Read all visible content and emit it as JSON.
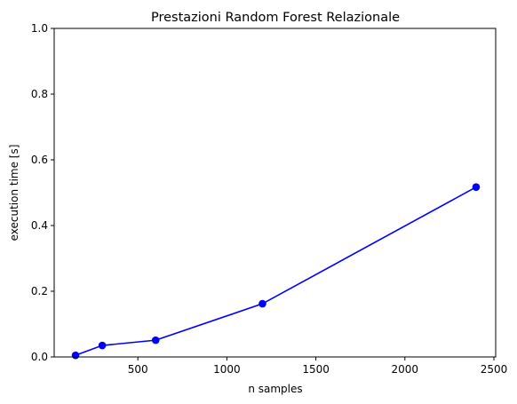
{
  "chart_data": {
    "type": "line",
    "title": "Prestazioni Random Forest Relazionale",
    "xlabel": "n samples",
    "ylabel": "execution time [s]",
    "xlim": [
      30,
      2510
    ],
    "ylim": [
      0,
      1
    ],
    "x_ticks": [
      500,
      1000,
      1500,
      2000,
      2500
    ],
    "x_tick_labels": [
      "500",
      "1000",
      "1500",
      "2000",
      "2500"
    ],
    "y_ticks": [
      0,
      0.2,
      0.4,
      0.6,
      0.8,
      1.0
    ],
    "y_tick_labels": [
      "0.0",
      "0.2",
      "0.4",
      "0.6",
      "0.8",
      "1.0"
    ],
    "grid": false,
    "series": [
      {
        "color": "#0000ff",
        "marker": "circle",
        "x": [
          150,
          300,
          600,
          1200,
          2400
        ],
        "y": [
          0.005,
          0.035,
          0.051,
          0.162,
          0.517
        ]
      }
    ]
  }
}
